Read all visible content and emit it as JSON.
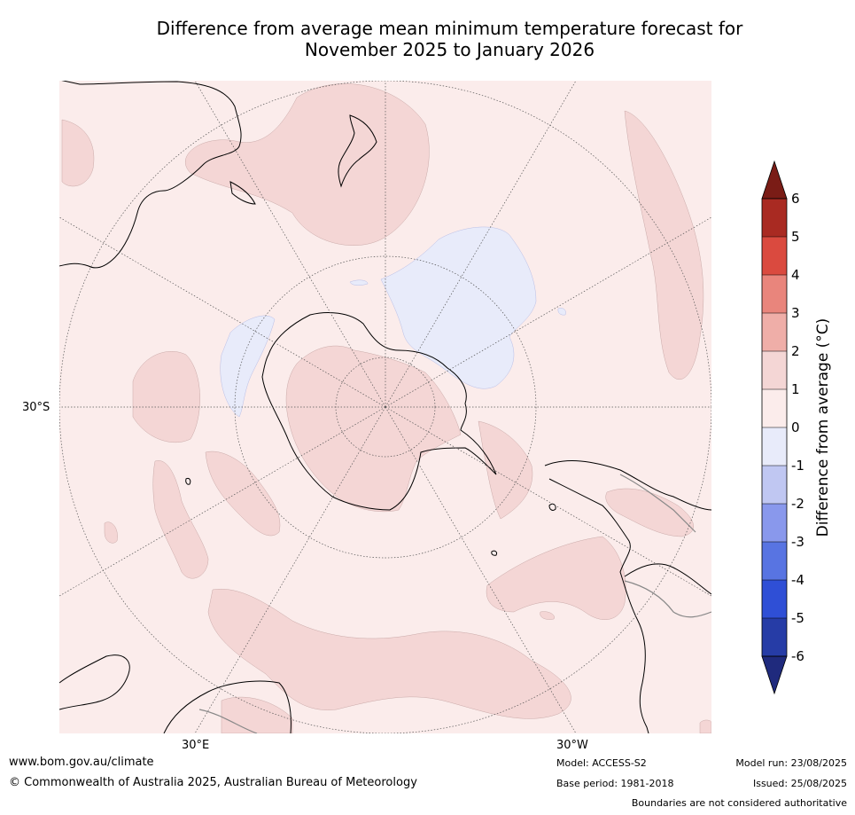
{
  "title": {
    "line1": "Difference from average mean minimum temperature forecast for",
    "line2": "November 2025 to January 2026"
  },
  "map": {
    "projection": "south-polar-stereographic",
    "lat_labels": [
      "30°S"
    ],
    "lon_labels": [
      "30°E",
      "30°W"
    ]
  },
  "colorbar": {
    "label": "Difference from average (°C)",
    "ticks": [
      "6",
      "5",
      "4",
      "3",
      "2",
      "1",
      "0",
      "-1",
      "-2",
      "-3",
      "-4",
      "-5",
      "-6"
    ],
    "colors": {
      "over": "#7a1c16",
      "5to6": "#a92a22",
      "4to5": "#da4a3f",
      "3to4": "#e9857c",
      "2to3": "#efaea8",
      "1to2": "#f4d6d5",
      "0to1": "#fbeceb",
      "m1to0": "#e8ebfa",
      "m2tom1": "#c0c7f2",
      "m3tom2": "#8998ec",
      "m4tom3": "#5874e2",
      "m5tom4": "#2f4fd6",
      "m6tom5": "#263ca6",
      "under": "#1f2a7d"
    }
  },
  "footer": {
    "website": "www.bom.gov.au/climate",
    "copyright": "© Commonwealth of Australia 2025, Australian Bureau of Meteorology",
    "model": "Model: ACCESS-S2",
    "base_period": "Base period: 1981-2018",
    "model_run": "Model run: 23/08/2025",
    "issued": "Issued: 25/08/2025",
    "disclaimer": "Boundaries are not considered authoritative"
  }
}
